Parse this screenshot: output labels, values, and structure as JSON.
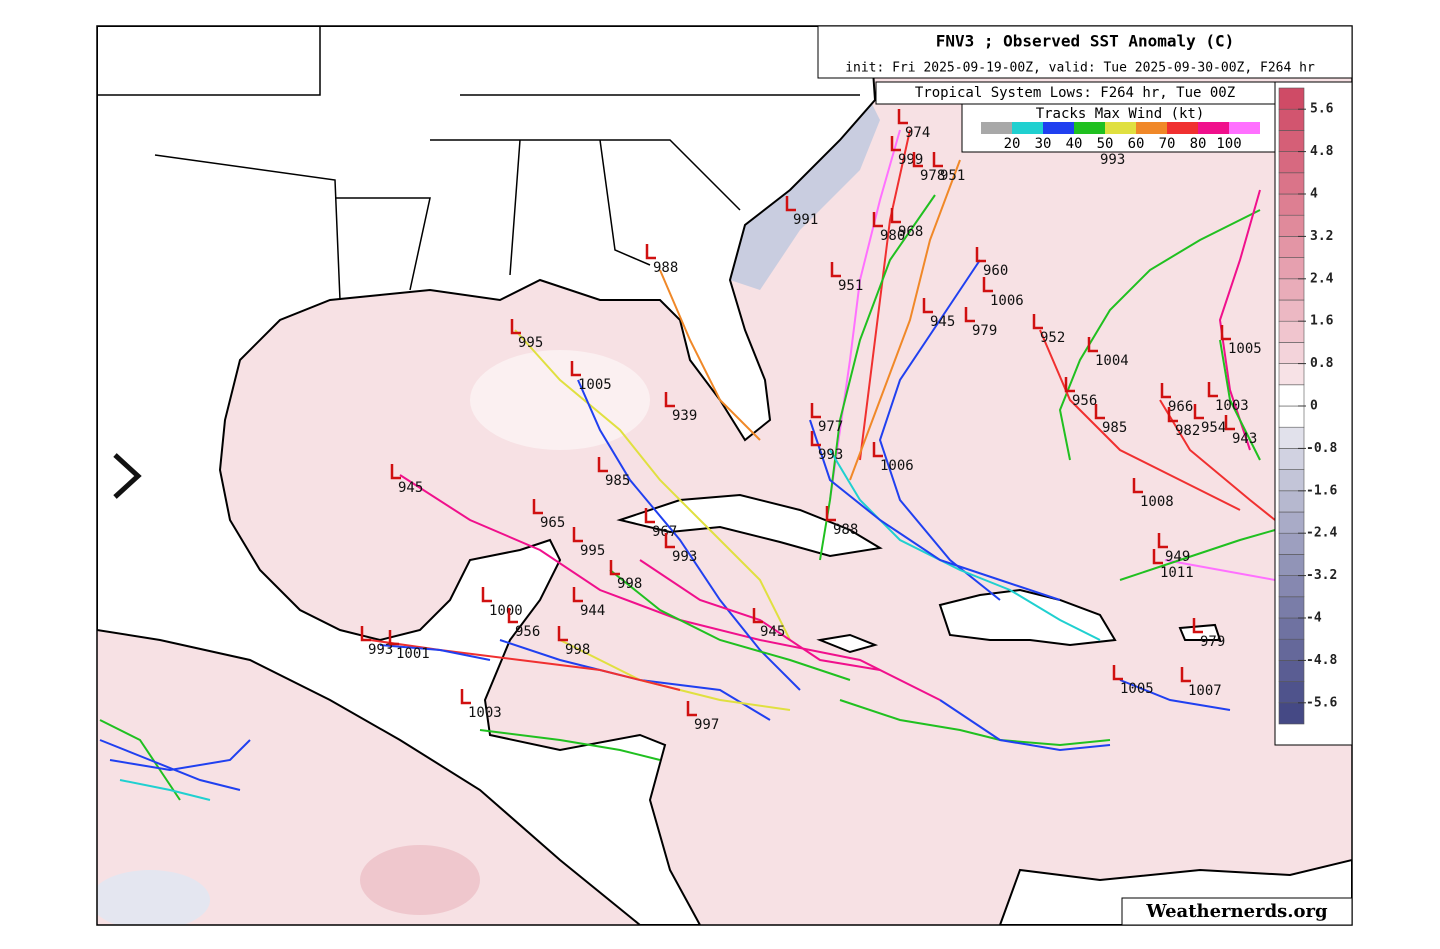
{
  "header": {
    "title": "FNV3 ; Observed SST Anomaly (C)",
    "subtitle": "init: Fri 2025-09-19-00Z, valid: Tue 2025-09-30-00Z, F264 hr"
  },
  "lows_box": {
    "title": "Tropical System Lows: F264 hr, Tue 00Z",
    "legend_title": "Tracks Max Wind (kt)",
    "colors": [
      "#a8a8a8",
      "#20d0d0",
      "#2040f0",
      "#20c020",
      "#e0e040",
      "#f08828",
      "#f03030",
      "#f0108c",
      "#ff70ff"
    ],
    "labels": [
      20,
      30,
      40,
      50,
      60,
      70,
      80,
      100
    ]
  },
  "colorbar": {
    "lim": [
      -6,
      6
    ],
    "ticks": [
      5.6,
      4.8,
      4,
      3.2,
      2.4,
      1.6,
      0.8,
      0,
      -0.8,
      -1.6,
      -2.4,
      -3.2,
      -4,
      -4.8,
      -5.6
    ]
  },
  "pressure_labels": [
    974,
    999,
    978,
    951,
    993,
    991,
    980,
    968,
    988,
    960,
    951,
    1006,
    945,
    979,
    952,
    995,
    1004,
    1005,
    1005,
    939,
    956,
    966,
    1003,
    985,
    982,
    954,
    943,
    977,
    993,
    1006,
    945,
    985,
    1008,
    965,
    988,
    967,
    993,
    995,
    949,
    1011,
    998,
    944,
    1000,
    945,
    956,
    979,
    993,
    1001,
    998,
    1005,
    1007,
    1003,
    997
  ],
  "watermark": "Weathernerds.org"
}
